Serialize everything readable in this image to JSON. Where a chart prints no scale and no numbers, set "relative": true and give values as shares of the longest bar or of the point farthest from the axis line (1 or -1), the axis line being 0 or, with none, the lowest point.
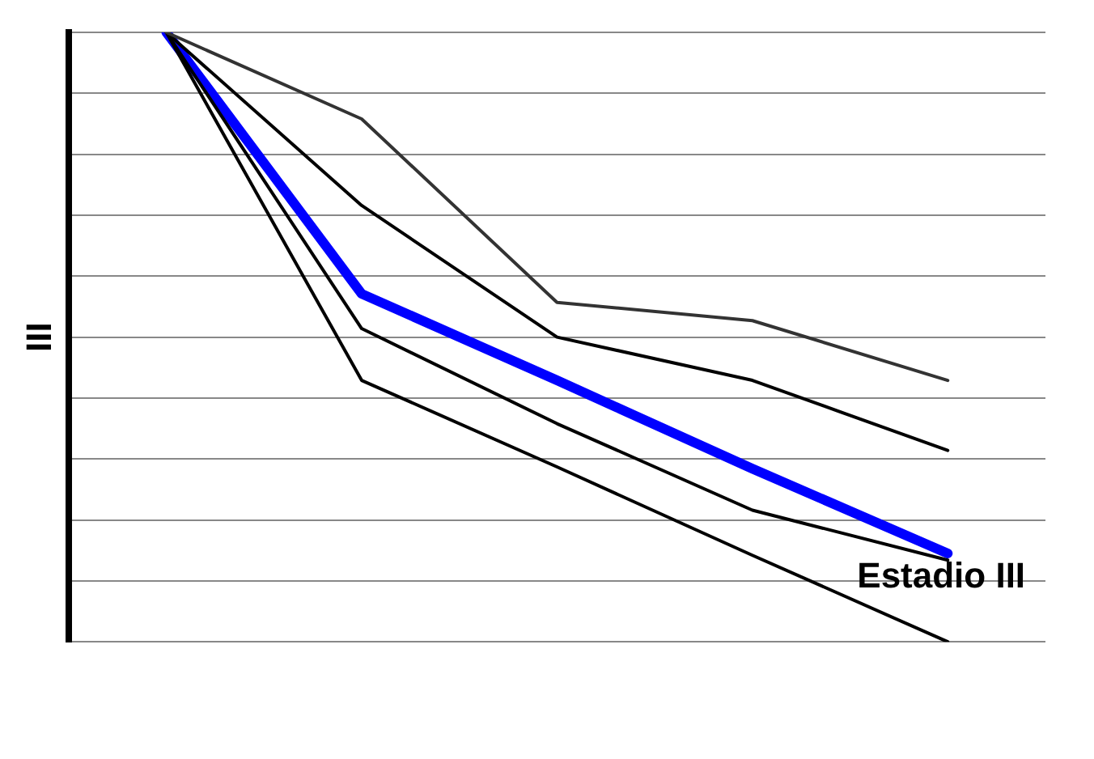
{
  "chart_data": {
    "type": "line",
    "relative": true,
    "ylabel": "III",
    "categories": [
      null,
      null,
      null,
      null,
      null
    ],
    "grid": "y",
    "legend": false,
    "marker": "none",
    "series": [
      {
        "color": "#333333",
        "values": [
          1,
          0.858,
          0.557,
          0.527,
          0.429
        ]
      },
      {
        "color": "#000000",
        "values": [
          1,
          0.716,
          0.5,
          0.429,
          0.314
        ]
      },
      {
        "color": "#000000",
        "values": [
          1,
          0.514,
          0.358,
          0.216,
          0.134
        ]
      },
      {
        "color": "#000000",
        "values": [
          1,
          0.429,
          0.287,
          0.142,
          0
        ]
      },
      {
        "name": "Estadio III",
        "color": "#0000ff",
        "values": [
          1,
          0.571,
          0.429,
          0.284,
          0.145
        ]
      }
    ]
  }
}
